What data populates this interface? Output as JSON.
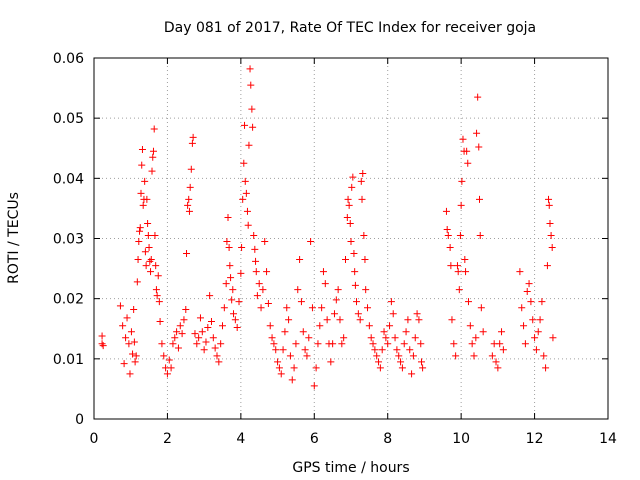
{
  "chart_data": {
    "type": "scatter",
    "title": "Day 081 of 2017, Rate Of TEC Index for receiver goja",
    "xlabel": "GPS time / hours",
    "ylabel": "ROTI / TECUs",
    "xlim": [
      0,
      14
    ],
    "ylim": [
      0,
      0.06
    ],
    "x_ticks": [
      "0",
      "2",
      "4",
      "6",
      "8",
      "10",
      "12",
      "14"
    ],
    "y_ticks": [
      "0",
      "0.01",
      "0.02",
      "0.03",
      "0.04",
      "0.05",
      "0.06"
    ],
    "grid": true,
    "marker": "+",
    "color": "#ff0000",
    "series": [
      {
        "name": "ROTI",
        "points": [
          [
            0.22,
            0.0125
          ],
          [
            0.22,
            0.0138
          ],
          [
            0.25,
            0.0122
          ],
          [
            0.72,
            0.0188
          ],
          [
            0.78,
            0.0155
          ],
          [
            0.82,
            0.0092
          ],
          [
            0.86,
            0.0135
          ],
          [
            0.9,
            0.0168
          ],
          [
            0.95,
            0.0125
          ],
          [
            0.98,
            0.0075
          ],
          [
            1.02,
            0.0145
          ],
          [
            1.05,
            0.0108
          ],
          [
            1.08,
            0.0182
          ],
          [
            1.1,
            0.0128
          ],
          [
            1.12,
            0.0095
          ],
          [
            1.15,
            0.0105
          ],
          [
            1.18,
            0.0228
          ],
          [
            1.2,
            0.0265
          ],
          [
            1.22,
            0.0295
          ],
          [
            1.24,
            0.0312
          ],
          [
            1.26,
            0.0318
          ],
          [
            1.28,
            0.0375
          ],
          [
            1.3,
            0.0422
          ],
          [
            1.32,
            0.0448
          ],
          [
            1.34,
            0.0355
          ],
          [
            1.36,
            0.0365
          ],
          [
            1.38,
            0.0395
          ],
          [
            1.4,
            0.0278
          ],
          [
            1.42,
            0.0255
          ],
          [
            1.44,
            0.0365
          ],
          [
            1.46,
            0.0325
          ],
          [
            1.48,
            0.0305
          ],
          [
            1.5,
            0.0285
          ],
          [
            1.52,
            0.0262
          ],
          [
            1.54,
            0.0245
          ],
          [
            1.56,
            0.0265
          ],
          [
            1.58,
            0.0412
          ],
          [
            1.6,
            0.0435
          ],
          [
            1.62,
            0.0445
          ],
          [
            1.64,
            0.0482
          ],
          [
            1.66,
            0.0305
          ],
          [
            1.68,
            0.0255
          ],
          [
            1.7,
            0.0215
          ],
          [
            1.72,
            0.0205
          ],
          [
            1.75,
            0.0238
          ],
          [
            1.78,
            0.0195
          ],
          [
            1.8,
            0.0162
          ],
          [
            1.85,
            0.0125
          ],
          [
            1.9,
            0.0105
          ],
          [
            1.95,
            0.0085
          ],
          [
            2.0,
            0.0075
          ],
          [
            2.05,
            0.0098
          ],
          [
            2.1,
            0.0085
          ],
          [
            2.15,
            0.0125
          ],
          [
            2.2,
            0.0135
          ],
          [
            2.25,
            0.0145
          ],
          [
            2.3,
            0.0118
          ],
          [
            2.35,
            0.0155
          ],
          [
            2.4,
            0.0142
          ],
          [
            2.45,
            0.0165
          ],
          [
            2.5,
            0.0182
          ],
          [
            2.52,
            0.0275
          ],
          [
            2.55,
            0.0355
          ],
          [
            2.58,
            0.0365
          ],
          [
            2.6,
            0.0345
          ],
          [
            2.62,
            0.0385
          ],
          [
            2.65,
            0.0415
          ],
          [
            2.68,
            0.0458
          ],
          [
            2.7,
            0.0468
          ],
          [
            2.75,
            0.0142
          ],
          [
            2.8,
            0.0125
          ],
          [
            2.85,
            0.0135
          ],
          [
            2.9,
            0.0168
          ],
          [
            2.95,
            0.0145
          ],
          [
            3.0,
            0.0115
          ],
          [
            3.05,
            0.0128
          ],
          [
            3.1,
            0.0152
          ],
          [
            3.15,
            0.0205
          ],
          [
            3.2,
            0.0162
          ],
          [
            3.25,
            0.0135
          ],
          [
            3.3,
            0.0118
          ],
          [
            3.35,
            0.0105
          ],
          [
            3.4,
            0.0095
          ],
          [
            3.45,
            0.0125
          ],
          [
            3.5,
            0.0155
          ],
          [
            3.55,
            0.0185
          ],
          [
            3.6,
            0.0225
          ],
          [
            3.62,
            0.0295
          ],
          [
            3.65,
            0.0335
          ],
          [
            3.68,
            0.0285
          ],
          [
            3.7,
            0.0255
          ],
          [
            3.72,
            0.0235
          ],
          [
            3.75,
            0.0198
          ],
          [
            3.78,
            0.0215
          ],
          [
            3.8,
            0.0175
          ],
          [
            3.85,
            0.0165
          ],
          [
            3.9,
            0.0152
          ],
          [
            3.95,
            0.0195
          ],
          [
            4.0,
            0.0242
          ],
          [
            4.02,
            0.0285
          ],
          [
            4.05,
            0.0365
          ],
          [
            4.08,
            0.0425
          ],
          [
            4.1,
            0.0488
          ],
          [
            4.12,
            0.0395
          ],
          [
            4.15,
            0.0375
          ],
          [
            4.18,
            0.0345
          ],
          [
            4.2,
            0.0322
          ],
          [
            4.22,
            0.0455
          ],
          [
            4.25,
            0.0582
          ],
          [
            4.27,
            0.0555
          ],
          [
            4.3,
            0.0515
          ],
          [
            4.32,
            0.0485
          ],
          [
            4.35,
            0.0305
          ],
          [
            4.38,
            0.0282
          ],
          [
            4.4,
            0.0262
          ],
          [
            4.42,
            0.0245
          ],
          [
            4.45,
            0.0205
          ],
          [
            4.5,
            0.0225
          ],
          [
            4.55,
            0.0185
          ],
          [
            4.6,
            0.0215
          ],
          [
            4.65,
            0.0295
          ],
          [
            4.7,
            0.0245
          ],
          [
            4.75,
            0.0192
          ],
          [
            4.8,
            0.0155
          ],
          [
            4.85,
            0.0135
          ],
          [
            4.9,
            0.0125
          ],
          [
            4.95,
            0.0115
          ],
          [
            5.0,
            0.0095
          ],
          [
            5.05,
            0.0085
          ],
          [
            5.1,
            0.0075
          ],
          [
            5.15,
            0.0115
          ],
          [
            5.2,
            0.0145
          ],
          [
            5.25,
            0.0185
          ],
          [
            5.3,
            0.0165
          ],
          [
            5.35,
            0.0105
          ],
          [
            5.4,
            0.0065
          ],
          [
            5.45,
            0.0085
          ],
          [
            5.5,
            0.0125
          ],
          [
            5.55,
            0.0215
          ],
          [
            5.6,
            0.0265
          ],
          [
            5.65,
            0.0195
          ],
          [
            5.7,
            0.0145
          ],
          [
            5.75,
            0.0115
          ],
          [
            5.8,
            0.0105
          ],
          [
            5.85,
            0.0135
          ],
          [
            5.9,
            0.0295
          ],
          [
            5.95,
            0.0185
          ],
          [
            6.0,
            0.0055
          ],
          [
            6.05,
            0.0085
          ],
          [
            6.1,
            0.0125
          ],
          [
            6.15,
            0.0155
          ],
          [
            6.2,
            0.0185
          ],
          [
            6.25,
            0.0245
          ],
          [
            6.3,
            0.0225
          ],
          [
            6.35,
            0.0165
          ],
          [
            6.4,
            0.0125
          ],
          [
            6.45,
            0.0095
          ],
          [
            6.5,
            0.0125
          ],
          [
            6.55,
            0.0175
          ],
          [
            6.6,
            0.0198
          ],
          [
            6.65,
            0.0215
          ],
          [
            6.7,
            0.0165
          ],
          [
            6.75,
            0.0125
          ],
          [
            6.8,
            0.0135
          ],
          [
            6.85,
            0.0265
          ],
          [
            6.9,
            0.0335
          ],
          [
            6.92,
            0.0365
          ],
          [
            6.95,
            0.0355
          ],
          [
            6.98,
            0.0325
          ],
          [
            7.0,
            0.0295
          ],
          [
            7.02,
            0.0385
          ],
          [
            7.05,
            0.0402
          ],
          [
            7.08,
            0.0275
          ],
          [
            7.1,
            0.0245
          ],
          [
            7.12,
            0.0222
          ],
          [
            7.15,
            0.0195
          ],
          [
            7.2,
            0.0175
          ],
          [
            7.25,
            0.0165
          ],
          [
            7.28,
            0.0395
          ],
          [
            7.3,
            0.0365
          ],
          [
            7.32,
            0.0408
          ],
          [
            7.35,
            0.0305
          ],
          [
            7.38,
            0.0265
          ],
          [
            7.4,
            0.0215
          ],
          [
            7.45,
            0.0185
          ],
          [
            7.5,
            0.0155
          ],
          [
            7.55,
            0.0135
          ],
          [
            7.6,
            0.0125
          ],
          [
            7.65,
            0.0115
          ],
          [
            7.7,
            0.0105
          ],
          [
            7.75,
            0.0095
          ],
          [
            7.8,
            0.0085
          ],
          [
            7.85,
            0.0115
          ],
          [
            7.9,
            0.0145
          ],
          [
            7.95,
            0.0135
          ],
          [
            8.0,
            0.0125
          ],
          [
            8.05,
            0.0155
          ],
          [
            8.1,
            0.0195
          ],
          [
            8.15,
            0.0175
          ],
          [
            8.2,
            0.0135
          ],
          [
            8.25,
            0.0115
          ],
          [
            8.3,
            0.0105
          ],
          [
            8.35,
            0.0095
          ],
          [
            8.4,
            0.0085
          ],
          [
            8.45,
            0.0125
          ],
          [
            8.5,
            0.0145
          ],
          [
            8.55,
            0.0165
          ],
          [
            8.6,
            0.0115
          ],
          [
            8.65,
            0.0075
          ],
          [
            8.7,
            0.0105
          ],
          [
            8.75,
            0.0135
          ],
          [
            8.8,
            0.0175
          ],
          [
            8.85,
            0.0165
          ],
          [
            8.9,
            0.0125
          ],
          [
            8.92,
            0.0095
          ],
          [
            8.95,
            0.0085
          ],
          [
            9.6,
            0.0345
          ],
          [
            9.62,
            0.0315
          ],
          [
            9.65,
            0.0305
          ],
          [
            9.7,
            0.0285
          ],
          [
            9.72,
            0.0255
          ],
          [
            9.75,
            0.0165
          ],
          [
            9.8,
            0.0125
          ],
          [
            9.85,
            0.0105
          ],
          [
            9.9,
            0.0255
          ],
          [
            9.92,
            0.0245
          ],
          [
            9.95,
            0.0215
          ],
          [
            9.98,
            0.0305
          ],
          [
            10.0,
            0.0355
          ],
          [
            10.02,
            0.0395
          ],
          [
            10.05,
            0.0465
          ],
          [
            10.08,
            0.0445
          ],
          [
            10.1,
            0.0265
          ],
          [
            10.12,
            0.0245
          ],
          [
            10.15,
            0.0445
          ],
          [
            10.18,
            0.0425
          ],
          [
            10.2,
            0.0195
          ],
          [
            10.25,
            0.0155
          ],
          [
            10.3,
            0.0125
          ],
          [
            10.35,
            0.0105
          ],
          [
            10.4,
            0.0135
          ],
          [
            10.42,
            0.0475
          ],
          [
            10.45,
            0.0535
          ],
          [
            10.48,
            0.0452
          ],
          [
            10.5,
            0.0365
          ],
          [
            10.52,
            0.0305
          ],
          [
            10.55,
            0.0185
          ],
          [
            10.6,
            0.0145
          ],
          [
            10.85,
            0.0105
          ],
          [
            10.9,
            0.0125
          ],
          [
            10.95,
            0.0095
          ],
          [
            11.0,
            0.0085
          ],
          [
            11.05,
            0.0125
          ],
          [
            11.1,
            0.0145
          ],
          [
            11.15,
            0.0115
          ],
          [
            11.6,
            0.0245
          ],
          [
            11.65,
            0.0185
          ],
          [
            11.7,
            0.0155
          ],
          [
            11.75,
            0.0125
          ],
          [
            11.8,
            0.0212
          ],
          [
            11.85,
            0.0225
          ],
          [
            11.9,
            0.0195
          ],
          [
            11.95,
            0.0165
          ],
          [
            12.0,
            0.0135
          ],
          [
            12.05,
            0.0115
          ],
          [
            12.1,
            0.0145
          ],
          [
            12.15,
            0.0165
          ],
          [
            12.2,
            0.0195
          ],
          [
            12.25,
            0.0105
          ],
          [
            12.3,
            0.0085
          ],
          [
            12.35,
            0.0255
          ],
          [
            12.38,
            0.0365
          ],
          [
            12.4,
            0.0355
          ],
          [
            12.42,
            0.0325
          ],
          [
            12.45,
            0.0305
          ],
          [
            12.48,
            0.0285
          ],
          [
            12.5,
            0.0135
          ]
        ]
      }
    ]
  }
}
